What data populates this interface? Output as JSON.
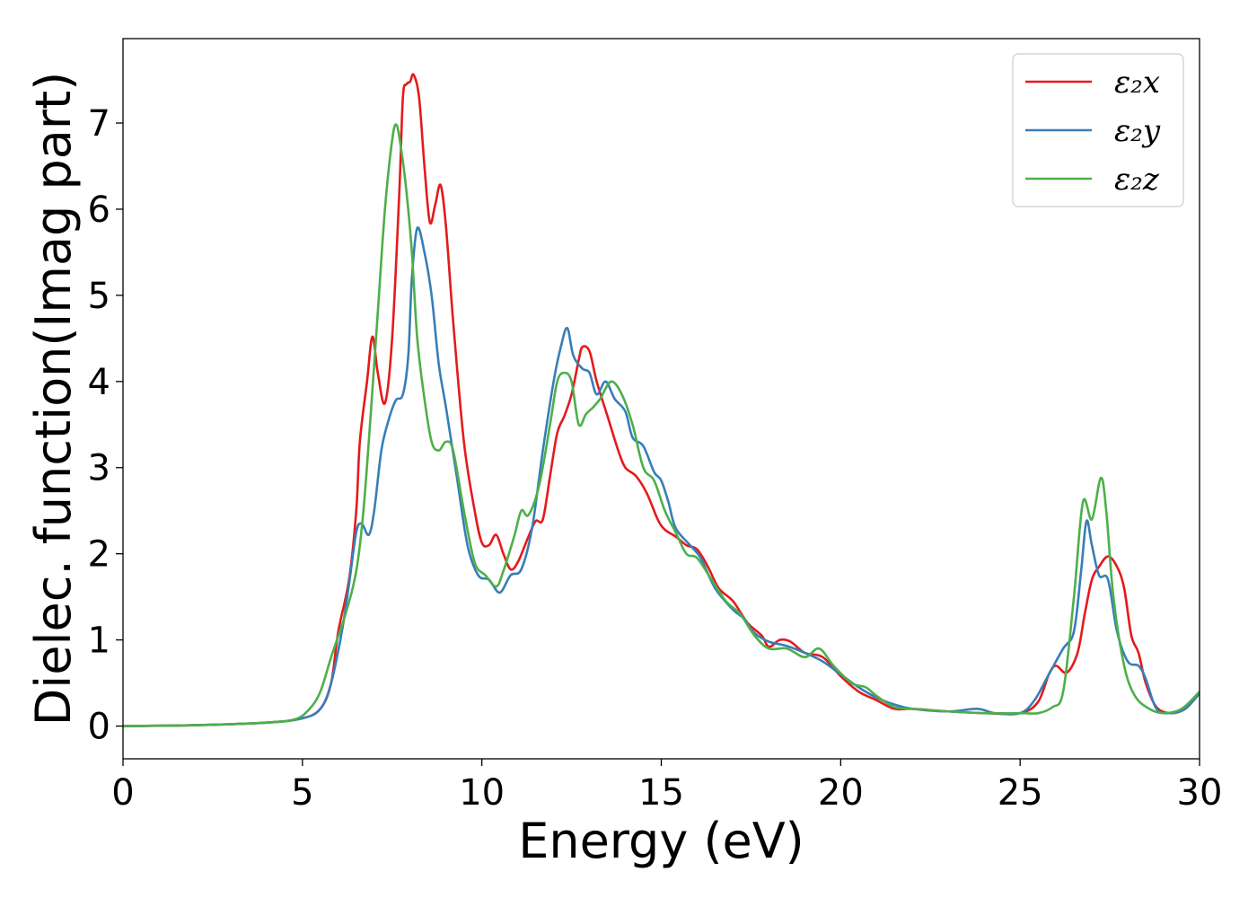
{
  "chart_data": {
    "type": "line",
    "title": "",
    "xlabel": "Energy (eV)",
    "ylabel": "Dielec. function(Imag part)",
    "xlim": [
      0,
      30
    ],
    "ylim": [
      -0.38,
      7.98
    ],
    "xticks": [
      0,
      5,
      10,
      15,
      20,
      25,
      30
    ],
    "yticks": [
      0,
      1,
      2,
      3,
      4,
      5,
      6,
      7
    ],
    "grid": false,
    "legend_position": "top-right",
    "series": [
      {
        "name": "ε₂x",
        "color": "#e41a1c",
        "points": [
          [
            0,
            0.0
          ],
          [
            2,
            0.01
          ],
          [
            4,
            0.04
          ],
          [
            5,
            0.09
          ],
          [
            5.5,
            0.2
          ],
          [
            5.8,
            0.5
          ],
          [
            6.0,
            1.1
          ],
          [
            6.3,
            1.7
          ],
          [
            6.5,
            2.5
          ],
          [
            6.6,
            3.3
          ],
          [
            6.8,
            4.0
          ],
          [
            6.95,
            4.52
          ],
          [
            7.1,
            4.1
          ],
          [
            7.3,
            3.75
          ],
          [
            7.5,
            4.5
          ],
          [
            7.7,
            6.2
          ],
          [
            7.8,
            7.3
          ],
          [
            7.9,
            7.45
          ],
          [
            8.0,
            7.48
          ],
          [
            8.1,
            7.56
          ],
          [
            8.25,
            7.3
          ],
          [
            8.4,
            6.5
          ],
          [
            8.55,
            5.85
          ],
          [
            8.7,
            6.05
          ],
          [
            8.85,
            6.28
          ],
          [
            9.0,
            5.8
          ],
          [
            9.2,
            4.7
          ],
          [
            9.5,
            3.3
          ],
          [
            9.8,
            2.5
          ],
          [
            10.0,
            2.13
          ],
          [
            10.2,
            2.1
          ],
          [
            10.4,
            2.22
          ],
          [
            10.6,
            2.0
          ],
          [
            10.8,
            1.82
          ],
          [
            11.0,
            1.9
          ],
          [
            11.3,
            2.2
          ],
          [
            11.5,
            2.38
          ],
          [
            11.7,
            2.4
          ],
          [
            11.9,
            2.9
          ],
          [
            12.1,
            3.4
          ],
          [
            12.3,
            3.6
          ],
          [
            12.5,
            3.85
          ],
          [
            12.7,
            4.25
          ],
          [
            12.8,
            4.4
          ],
          [
            13.0,
            4.35
          ],
          [
            13.2,
            4.0
          ],
          [
            13.5,
            3.6
          ],
          [
            13.8,
            3.2
          ],
          [
            14.0,
            3.0
          ],
          [
            14.3,
            2.9
          ],
          [
            14.6,
            2.7
          ],
          [
            14.9,
            2.4
          ],
          [
            15.1,
            2.28
          ],
          [
            15.4,
            2.2
          ],
          [
            15.7,
            2.1
          ],
          [
            16.0,
            2.05
          ],
          [
            16.3,
            1.85
          ],
          [
            16.6,
            1.6
          ],
          [
            17.0,
            1.45
          ],
          [
            17.4,
            1.2
          ],
          [
            17.8,
            1.05
          ],
          [
            18.0,
            0.92
          ],
          [
            18.3,
            1.0
          ],
          [
            18.6,
            0.98
          ],
          [
            19.0,
            0.85
          ],
          [
            19.5,
            0.8
          ],
          [
            20.0,
            0.58
          ],
          [
            20.5,
            0.4
          ],
          [
            21.0,
            0.3
          ],
          [
            21.5,
            0.2
          ],
          [
            22.0,
            0.2
          ],
          [
            23.0,
            0.17
          ],
          [
            24.0,
            0.15
          ],
          [
            25.0,
            0.15
          ],
          [
            25.5,
            0.28
          ],
          [
            25.8,
            0.6
          ],
          [
            26.0,
            0.7
          ],
          [
            26.3,
            0.62
          ],
          [
            26.6,
            0.85
          ],
          [
            26.8,
            1.3
          ],
          [
            27.0,
            1.7
          ],
          [
            27.2,
            1.85
          ],
          [
            27.45,
            1.97
          ],
          [
            27.7,
            1.85
          ],
          [
            27.9,
            1.6
          ],
          [
            28.1,
            1.05
          ],
          [
            28.3,
            0.85
          ],
          [
            28.5,
            0.5
          ],
          [
            28.8,
            0.22
          ],
          [
            29.2,
            0.15
          ],
          [
            29.6,
            0.2
          ],
          [
            30.0,
            0.38
          ]
        ]
      },
      {
        "name": "ε₂y",
        "color": "#377eb8",
        "points": [
          [
            0,
            0.0
          ],
          [
            2,
            0.01
          ],
          [
            4,
            0.04
          ],
          [
            5,
            0.09
          ],
          [
            5.5,
            0.2
          ],
          [
            5.8,
            0.5
          ],
          [
            6.1,
            1.1
          ],
          [
            6.3,
            1.65
          ],
          [
            6.5,
            2.25
          ],
          [
            6.65,
            2.35
          ],
          [
            6.85,
            2.22
          ],
          [
            7.0,
            2.5
          ],
          [
            7.2,
            3.2
          ],
          [
            7.4,
            3.55
          ],
          [
            7.6,
            3.78
          ],
          [
            7.8,
            3.85
          ],
          [
            7.95,
            4.3
          ],
          [
            8.05,
            5.2
          ],
          [
            8.2,
            5.78
          ],
          [
            8.4,
            5.5
          ],
          [
            8.6,
            5.0
          ],
          [
            8.8,
            4.2
          ],
          [
            9.0,
            3.7
          ],
          [
            9.3,
            2.9
          ],
          [
            9.6,
            2.1
          ],
          [
            9.9,
            1.75
          ],
          [
            10.2,
            1.7
          ],
          [
            10.5,
            1.55
          ],
          [
            10.8,
            1.75
          ],
          [
            11.1,
            1.82
          ],
          [
            11.4,
            2.3
          ],
          [
            11.7,
            3.2
          ],
          [
            12.0,
            4.0
          ],
          [
            12.2,
            4.4
          ],
          [
            12.38,
            4.62
          ],
          [
            12.55,
            4.3
          ],
          [
            12.8,
            4.15
          ],
          [
            13.0,
            4.1
          ],
          [
            13.2,
            3.85
          ],
          [
            13.45,
            4.0
          ],
          [
            13.7,
            3.8
          ],
          [
            14.0,
            3.65
          ],
          [
            14.2,
            3.35
          ],
          [
            14.5,
            3.25
          ],
          [
            14.8,
            2.95
          ],
          [
            15.0,
            2.85
          ],
          [
            15.2,
            2.6
          ],
          [
            15.4,
            2.3
          ],
          [
            15.8,
            2.1
          ],
          [
            16.1,
            1.95
          ],
          [
            16.5,
            1.6
          ],
          [
            17.0,
            1.35
          ],
          [
            17.3,
            1.25
          ],
          [
            17.6,
            1.08
          ],
          [
            18.0,
            0.98
          ],
          [
            18.5,
            0.93
          ],
          [
            19.0,
            0.85
          ],
          [
            19.5,
            0.75
          ],
          [
            20.0,
            0.6
          ],
          [
            20.5,
            0.45
          ],
          [
            21.0,
            0.33
          ],
          [
            21.5,
            0.25
          ],
          [
            22.0,
            0.2
          ],
          [
            23.0,
            0.17
          ],
          [
            23.8,
            0.2
          ],
          [
            24.3,
            0.15
          ],
          [
            25.0,
            0.15
          ],
          [
            25.4,
            0.3
          ],
          [
            25.8,
            0.6
          ],
          [
            26.2,
            0.9
          ],
          [
            26.5,
            1.1
          ],
          [
            26.7,
            1.8
          ],
          [
            26.85,
            2.38
          ],
          [
            27.0,
            2.1
          ],
          [
            27.2,
            1.75
          ],
          [
            27.45,
            1.7
          ],
          [
            27.7,
            1.1
          ],
          [
            28.0,
            0.75
          ],
          [
            28.3,
            0.7
          ],
          [
            28.5,
            0.55
          ],
          [
            28.8,
            0.2
          ],
          [
            29.2,
            0.15
          ],
          [
            29.6,
            0.2
          ],
          [
            30.0,
            0.38
          ]
        ]
      },
      {
        "name": "ε₂z",
        "color": "#4daf4a",
        "points": [
          [
            0,
            0.0
          ],
          [
            2,
            0.01
          ],
          [
            4,
            0.04
          ],
          [
            4.8,
            0.08
          ],
          [
            5.2,
            0.2
          ],
          [
            5.5,
            0.4
          ],
          [
            5.8,
            0.8
          ],
          [
            6.2,
            1.3
          ],
          [
            6.5,
            1.8
          ],
          [
            6.7,
            2.5
          ],
          [
            6.9,
            3.6
          ],
          [
            7.1,
            4.8
          ],
          [
            7.3,
            6.0
          ],
          [
            7.5,
            6.8
          ],
          [
            7.62,
            6.98
          ],
          [
            7.75,
            6.7
          ],
          [
            7.9,
            6.2
          ],
          [
            8.05,
            5.5
          ],
          [
            8.2,
            4.5
          ],
          [
            8.4,
            3.8
          ],
          [
            8.6,
            3.3
          ],
          [
            8.8,
            3.2
          ],
          [
            9.0,
            3.3
          ],
          [
            9.2,
            3.2
          ],
          [
            9.5,
            2.5
          ],
          [
            9.8,
            1.9
          ],
          [
            10.1,
            1.75
          ],
          [
            10.4,
            1.62
          ],
          [
            10.6,
            1.8
          ],
          [
            10.9,
            2.2
          ],
          [
            11.1,
            2.5
          ],
          [
            11.3,
            2.45
          ],
          [
            11.6,
            2.8
          ],
          [
            11.9,
            3.5
          ],
          [
            12.1,
            4.0
          ],
          [
            12.3,
            4.1
          ],
          [
            12.5,
            4.0
          ],
          [
            12.7,
            3.5
          ],
          [
            12.9,
            3.62
          ],
          [
            13.1,
            3.7
          ],
          [
            13.3,
            3.8
          ],
          [
            13.6,
            4.0
          ],
          [
            13.9,
            3.85
          ],
          [
            14.2,
            3.5
          ],
          [
            14.5,
            3.0
          ],
          [
            14.8,
            2.85
          ],
          [
            15.1,
            2.5
          ],
          [
            15.4,
            2.25
          ],
          [
            15.7,
            2.0
          ],
          [
            16.0,
            1.95
          ],
          [
            16.4,
            1.7
          ],
          [
            16.8,
            1.45
          ],
          [
            17.2,
            1.3
          ],
          [
            17.6,
            1.05
          ],
          [
            18.0,
            0.9
          ],
          [
            18.5,
            0.9
          ],
          [
            19.0,
            0.8
          ],
          [
            19.4,
            0.9
          ],
          [
            19.8,
            0.7
          ],
          [
            20.3,
            0.5
          ],
          [
            20.7,
            0.45
          ],
          [
            21.0,
            0.35
          ],
          [
            21.5,
            0.22
          ],
          [
            22.0,
            0.2
          ],
          [
            23.0,
            0.17
          ],
          [
            24.0,
            0.15
          ],
          [
            25.0,
            0.15
          ],
          [
            25.5,
            0.15
          ],
          [
            25.9,
            0.22
          ],
          [
            26.2,
            0.4
          ],
          [
            26.5,
            1.5
          ],
          [
            26.75,
            2.6
          ],
          [
            27.0,
            2.4
          ],
          [
            27.25,
            2.88
          ],
          [
            27.4,
            2.5
          ],
          [
            27.6,
            1.5
          ],
          [
            27.9,
            0.7
          ],
          [
            28.2,
            0.35
          ],
          [
            28.6,
            0.2
          ],
          [
            29.0,
            0.15
          ],
          [
            29.5,
            0.2
          ],
          [
            30.0,
            0.4
          ]
        ]
      }
    ]
  }
}
